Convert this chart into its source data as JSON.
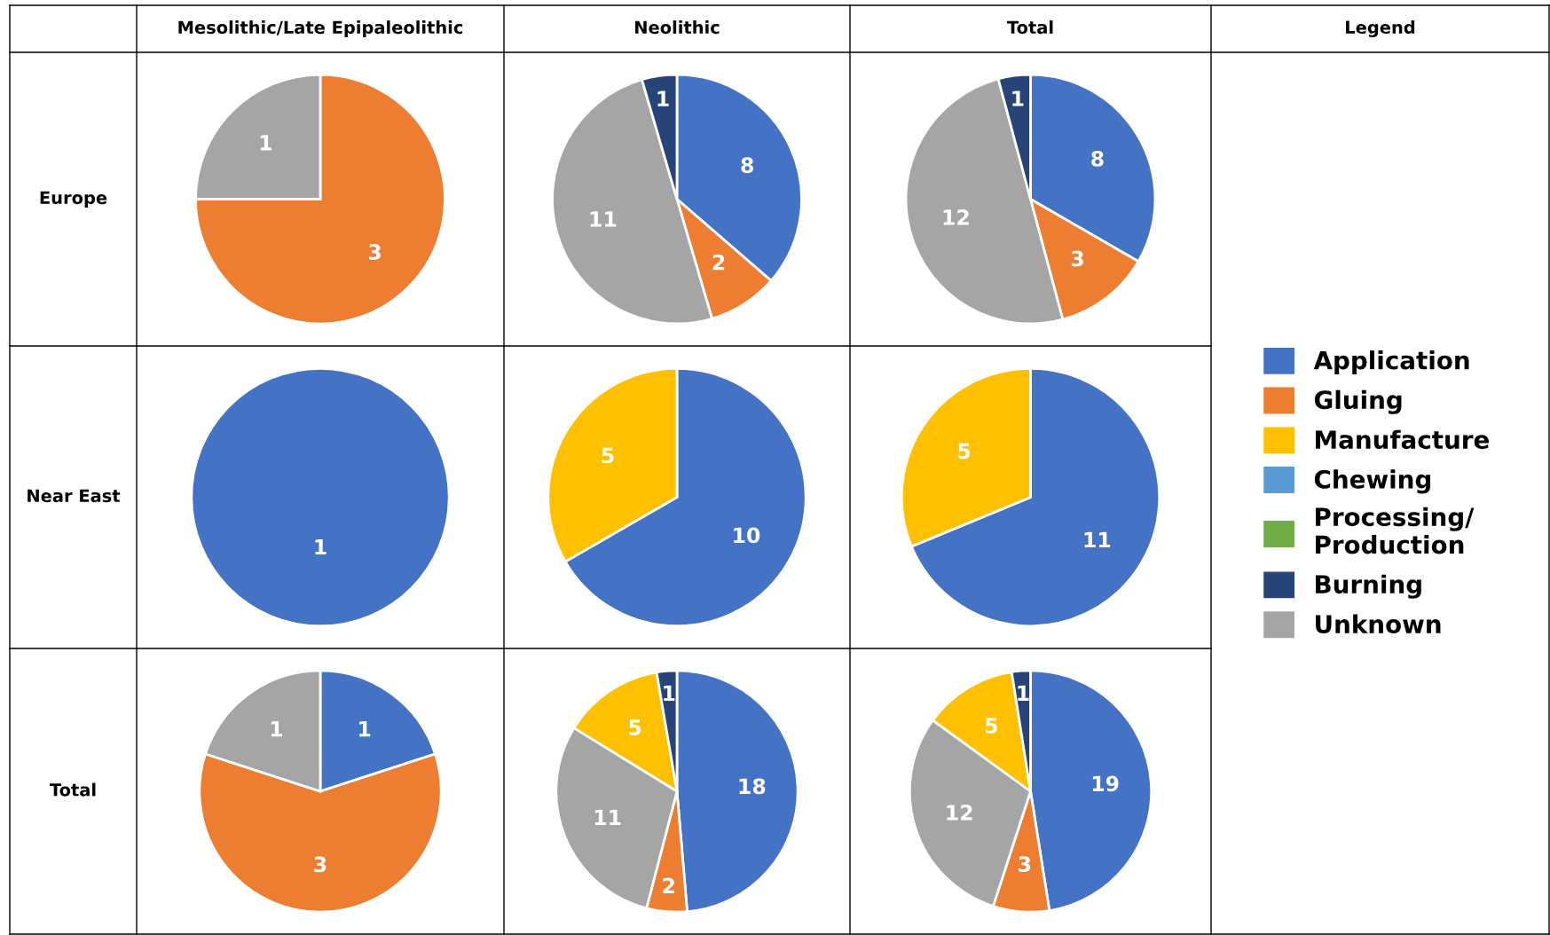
{
  "chart_data": [
    {
      "type": "pie",
      "title": "Mesolithic/Late Epipaleolithic",
      "ylabel": "Europe",
      "categories": [
        null,
        null
      ],
      "values": [
        3,
        1
      ],
      "colors": [
        "#ed7d31",
        "#a5a5a5"
      ],
      "data_labels": true
    },
    {
      "type": "pie",
      "title": "Neolithic",
      "categories": [
        null,
        null,
        null,
        null
      ],
      "values": [
        8,
        2,
        11,
        1
      ],
      "colors": [
        "#4472c4",
        "#ed7d31",
        "#a5a5a5",
        "#264478"
      ],
      "data_labels": true
    },
    {
      "type": "pie",
      "title": "Total",
      "categories": [
        null,
        null,
        null,
        null
      ],
      "values": [
        8,
        3,
        12,
        1
      ],
      "colors": [
        "#4472c4",
        "#ed7d31",
        "#a5a5a5",
        "#264478"
      ],
      "data_labels": true
    },
    {
      "type": "pie",
      "ylabel": "Near East",
      "categories": [
        null
      ],
      "values": [
        1
      ],
      "colors": [
        "#4472c4"
      ],
      "data_labels": true
    },
    {
      "type": "pie",
      "categories": [
        null,
        null
      ],
      "values": [
        10,
        5
      ],
      "colors": [
        "#4472c4",
        "#ffc000"
      ],
      "data_labels": true
    },
    {
      "type": "pie",
      "categories": [
        null,
        null
      ],
      "values": [
        11,
        5
      ],
      "colors": [
        "#4472c4",
        "#ffc000"
      ],
      "data_labels": true
    },
    {
      "type": "pie",
      "ylabel": "Total",
      "categories": [
        null,
        null,
        null
      ],
      "values": [
        1,
        3,
        1
      ],
      "colors": [
        "#4472c4",
        "#ed7d31",
        "#a5a5a5"
      ],
      "data_labels": true
    },
    {
      "type": "pie",
      "categories": [
        null,
        null,
        null,
        null,
        null
      ],
      "values": [
        18,
        2,
        11,
        5,
        1
      ],
      "colors": [
        "#4472c4",
        "#ed7d31",
        "#a5a5a5",
        "#ffc000",
        "#264478"
      ],
      "data_labels": true
    },
    {
      "type": "pie",
      "categories": [
        null,
        null,
        null,
        null,
        null
      ],
      "values": [
        19,
        3,
        12,
        5,
        1
      ],
      "colors": [
        "#4472c4",
        "#ed7d31",
        "#a5a5a5",
        "#ffc000",
        "#264478"
      ],
      "data_labels": true
    },
    {
      "type": "other",
      "title": "Legend",
      "categories": [
        "Application",
        "Gluing",
        "Manufacture",
        "Chewing",
        "Processing/\nProduction",
        "Burning",
        "Unknown"
      ],
      "colors": [
        "#4472c4",
        "#ed7d31",
        "#ffc000",
        "#5b9bd5",
        "#70ad47",
        "#264478",
        "#a5a5a5"
      ]
    }
  ]
}
